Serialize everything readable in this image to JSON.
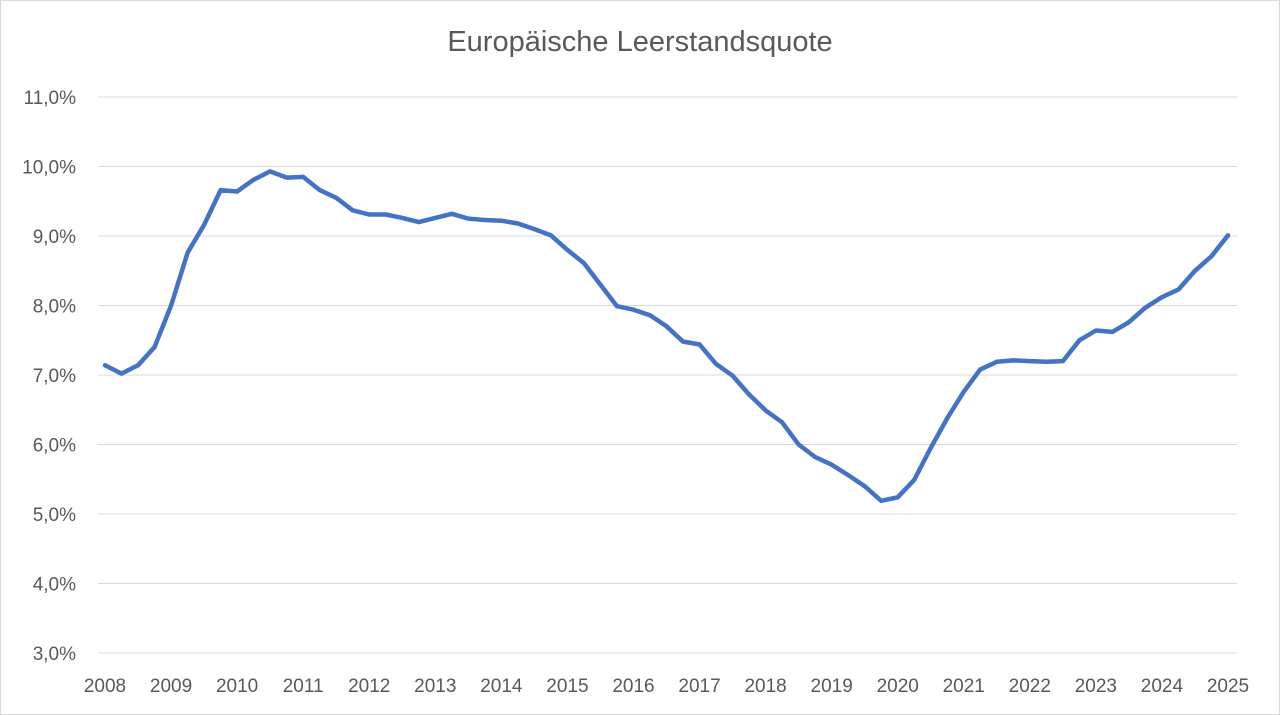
{
  "chart_data": {
    "type": "line",
    "title": "Europäische Leerstandsquote",
    "xlabel": "",
    "ylabel": "",
    "ylim": [
      3.0,
      11.0
    ],
    "xlim": [
      2008.0,
      2025.0
    ],
    "yticks": [
      3.0,
      4.0,
      5.0,
      6.0,
      7.0,
      8.0,
      9.0,
      10.0,
      11.0
    ],
    "ytick_labels": [
      "3,0%",
      "4,0%",
      "5,0%",
      "6,0%",
      "7,0%",
      "8,0%",
      "9,0%",
      "10,0%",
      "11,0%"
    ],
    "xticks": [
      2008,
      2009,
      2010,
      2011,
      2012,
      2013,
      2014,
      2015,
      2016,
      2017,
      2018,
      2019,
      2020,
      2021,
      2022,
      2023,
      2024,
      2025
    ],
    "xtick_labels": [
      "2008",
      "2009",
      "2010",
      "2011",
      "2012",
      "2013",
      "2014",
      "2015",
      "2016",
      "2017",
      "2018",
      "2019",
      "2020",
      "2021",
      "2022",
      "2023",
      "2024",
      "2025"
    ],
    "grid": true,
    "legend": "none",
    "series_color": "#4472C4",
    "series": [
      {
        "x": [
          2008.0,
          2008.25,
          2008.5,
          2008.75,
          2009.0,
          2009.25,
          2009.5,
          2009.75,
          2010.0,
          2010.25,
          2010.5,
          2010.75,
          2011.0,
          2011.25,
          2011.5,
          2011.75,
          2012.0,
          2012.25,
          2012.5,
          2012.75,
          2013.0,
          2013.25,
          2013.5,
          2013.75,
          2014.0,
          2014.25,
          2014.5,
          2014.75,
          2015.0,
          2015.25,
          2015.5,
          2015.75,
          2016.0,
          2016.25,
          2016.5,
          2016.75,
          2017.0,
          2017.25,
          2017.5,
          2017.75,
          2018.0,
          2018.25,
          2018.5,
          2018.75,
          2019.0,
          2019.25,
          2019.5,
          2019.75,
          2020.0,
          2020.25,
          2020.5,
          2020.75,
          2021.0,
          2021.25,
          2021.5,
          2021.75,
          2022.0,
          2022.25,
          2022.5,
          2022.75,
          2023.0,
          2023.25,
          2023.5,
          2023.75,
          2024.0,
          2024.25,
          2024.5,
          2024.75,
          2025.0
        ],
        "values": [
          7.14,
          7.02,
          7.14,
          7.4,
          8.0,
          8.76,
          9.16,
          9.66,
          9.64,
          9.81,
          9.93,
          9.84,
          9.85,
          9.66,
          9.55,
          9.37,
          9.31,
          9.31,
          9.26,
          9.2,
          9.26,
          9.32,
          9.25,
          9.23,
          9.22,
          9.18,
          9.1,
          9.01,
          8.8,
          8.61,
          8.3,
          7.99,
          7.94,
          7.86,
          7.7,
          7.48,
          7.44,
          7.16,
          6.99,
          6.72,
          6.49,
          6.32,
          6.0,
          5.82,
          5.71,
          5.56,
          5.4,
          5.19,
          5.24,
          5.49,
          5.95,
          6.38,
          6.76,
          7.08,
          7.19,
          7.21,
          7.2,
          7.19,
          7.2,
          7.5,
          7.64,
          7.62,
          7.76,
          7.97,
          8.12,
          8.23,
          8.5,
          8.71,
          9.01
        ]
      }
    ]
  }
}
